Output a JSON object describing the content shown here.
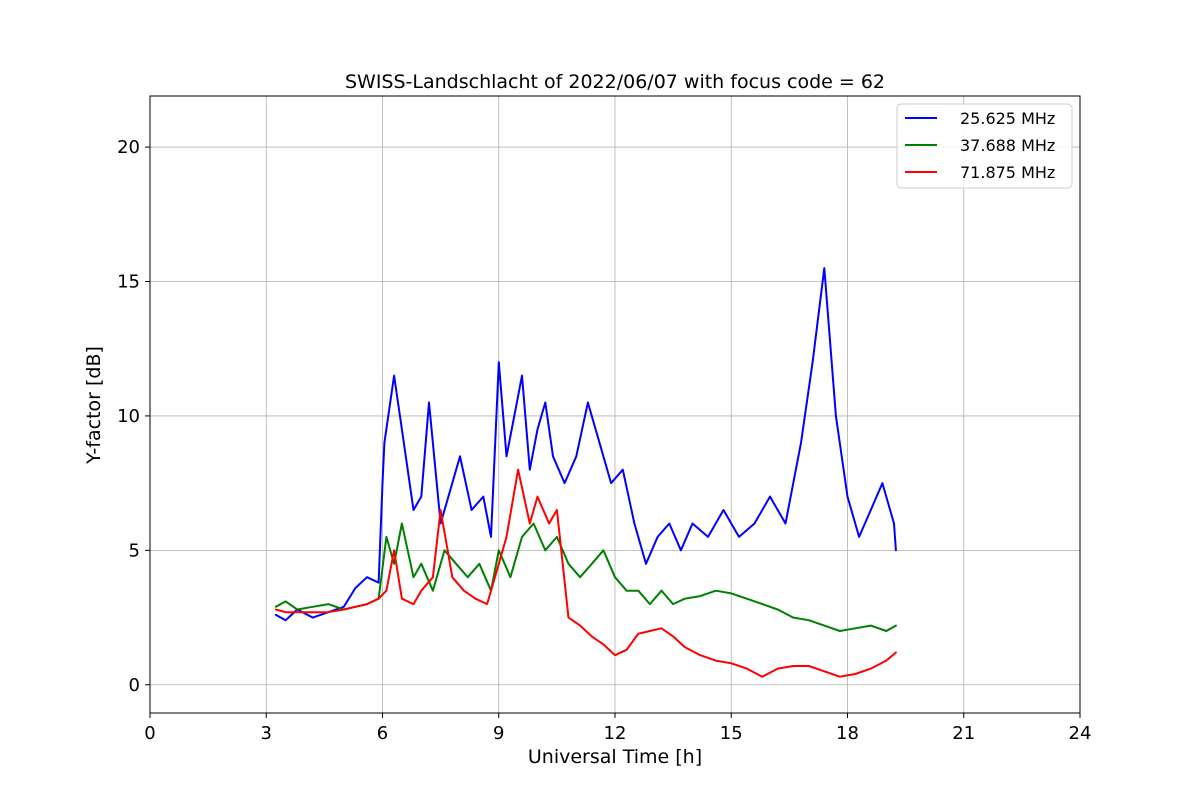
{
  "chart_data": {
    "type": "line",
    "title": "SWISS-Landschlacht of 2022/06/07 with focus code = 62",
    "xlabel": "Universal Time [h]",
    "ylabel": "Y-factor [dB]",
    "xlim": [
      0,
      24
    ],
    "ylim": [
      -1.05,
      21.9
    ],
    "x_ticks": [
      0,
      3,
      6,
      9,
      12,
      15,
      18,
      21,
      24
    ],
    "y_ticks": [
      0,
      5,
      10,
      15,
      20
    ],
    "grid": true,
    "legend_position": "top-right",
    "series": [
      {
        "name": "25.625 MHz",
        "color": "#0000ff",
        "x": [
          3.25,
          3.5,
          3.8,
          4.2,
          4.6,
          5.0,
          5.3,
          5.6,
          5.9,
          6.0,
          6.05,
          6.3,
          6.5,
          6.8,
          7.0,
          7.2,
          7.5,
          7.8,
          8.0,
          8.3,
          8.6,
          8.8,
          9.0,
          9.2,
          9.4,
          9.6,
          9.8,
          10.0,
          10.2,
          10.4,
          10.7,
          11.0,
          11.3,
          11.6,
          11.9,
          12.2,
          12.5,
          12.8,
          13.1,
          13.4,
          13.7,
          14.0,
          14.4,
          14.8,
          15.2,
          15.6,
          16.0,
          16.4,
          16.8,
          17.1,
          17.4,
          17.7,
          18.0,
          18.3,
          18.6,
          18.9,
          19.2,
          19.25
        ],
        "y": [
          2.6,
          2.4,
          2.8,
          2.5,
          2.7,
          2.9,
          3.6,
          4.0,
          3.8,
          7.5,
          9.0,
          11.5,
          9.5,
          6.5,
          7.0,
          10.5,
          6.0,
          7.5,
          8.5,
          6.5,
          7.0,
          5.5,
          12.0,
          8.5,
          10.0,
          11.5,
          8.0,
          9.5,
          10.5,
          8.5,
          7.5,
          8.5,
          10.5,
          9.0,
          7.5,
          8.0,
          6.0,
          4.5,
          5.5,
          6.0,
          5.0,
          6.0,
          5.5,
          6.5,
          5.5,
          6.0,
          7.0,
          6.0,
          9.0,
          12.0,
          15.5,
          10.0,
          7.0,
          5.5,
          6.5,
          7.5,
          6.0,
          5.0
        ]
      },
      {
        "name": "37.688 MHz",
        "color": "#008000",
        "x": [
          3.25,
          3.5,
          3.8,
          4.2,
          4.6,
          5.0,
          5.3,
          5.6,
          5.9,
          6.1,
          6.3,
          6.5,
          6.8,
          7.0,
          7.3,
          7.6,
          7.9,
          8.2,
          8.5,
          8.8,
          9.0,
          9.3,
          9.6,
          9.9,
          10.2,
          10.5,
          10.8,
          11.1,
          11.4,
          11.7,
          12.0,
          12.3,
          12.6,
          12.9,
          13.2,
          13.5,
          13.8,
          14.2,
          14.6,
          15.0,
          15.4,
          15.8,
          16.2,
          16.6,
          17.0,
          17.4,
          17.8,
          18.2,
          18.6,
          19.0,
          19.25
        ],
        "y": [
          2.9,
          3.1,
          2.8,
          2.9,
          3.0,
          2.8,
          2.9,
          3.0,
          3.2,
          5.5,
          4.5,
          6.0,
          4.0,
          4.5,
          3.5,
          5.0,
          4.5,
          4.0,
          4.5,
          3.5,
          5.0,
          4.0,
          5.5,
          6.0,
          5.0,
          5.5,
          4.5,
          4.0,
          4.5,
          5.0,
          4.0,
          3.5,
          3.5,
          3.0,
          3.5,
          3.0,
          3.2,
          3.3,
          3.5,
          3.4,
          3.2,
          3.0,
          2.8,
          2.5,
          2.4,
          2.2,
          2.0,
          2.1,
          2.2,
          2.0,
          2.2
        ]
      },
      {
        "name": "71.875 MHz",
        "color": "#ff0000",
        "x": [
          3.25,
          3.5,
          3.8,
          4.2,
          4.6,
          5.0,
          5.3,
          5.6,
          5.9,
          6.1,
          6.3,
          6.5,
          6.8,
          7.0,
          7.3,
          7.5,
          7.8,
          8.1,
          8.4,
          8.7,
          9.0,
          9.2,
          9.5,
          9.8,
          10.0,
          10.3,
          10.5,
          10.8,
          11.1,
          11.4,
          11.7,
          12.0,
          12.3,
          12.6,
          12.9,
          13.2,
          13.5,
          13.8,
          14.2,
          14.6,
          15.0,
          15.4,
          15.8,
          16.2,
          16.6,
          17.0,
          17.4,
          17.8,
          18.2,
          18.6,
          19.0,
          19.25
        ],
        "y": [
          2.8,
          2.7,
          2.7,
          2.7,
          2.7,
          2.8,
          2.9,
          3.0,
          3.2,
          3.5,
          5.0,
          3.2,
          3.0,
          3.5,
          4.0,
          6.5,
          4.0,
          3.5,
          3.2,
          3.0,
          4.5,
          5.5,
          8.0,
          6.0,
          7.0,
          6.0,
          6.5,
          2.5,
          2.2,
          1.8,
          1.5,
          1.1,
          1.3,
          1.9,
          2.0,
          2.1,
          1.8,
          1.4,
          1.1,
          0.9,
          0.8,
          0.6,
          0.3,
          0.6,
          0.7,
          0.7,
          0.5,
          0.3,
          0.4,
          0.6,
          0.9,
          1.2
        ]
      }
    ]
  }
}
